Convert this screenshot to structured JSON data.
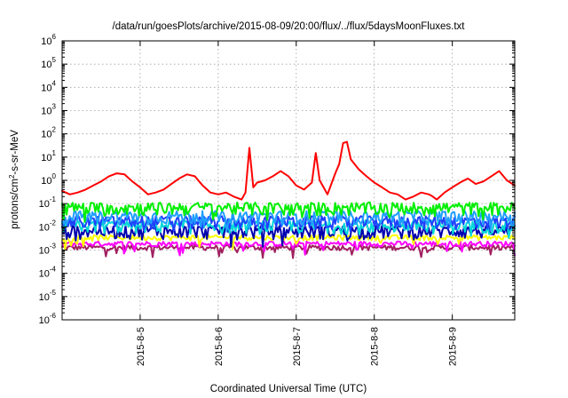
{
  "chart_data": {
    "type": "line",
    "title": "/data/run/goesPlots/archive/2015-08-09/20:00/flux/../flux/5daysMoonFluxes.txt",
    "xlabel": "Coordinated Universal Time (UTC)",
    "ylabel": "protons/cm²-s-sr-MeV",
    "yscale": "log",
    "ylim": [
      1e-06,
      1000000.0
    ],
    "xlim": [
      0,
      5.8
    ],
    "x_tick_labels": [
      "2015-8-5",
      "2015-8-6",
      "2015-8-7",
      "2015-8-8",
      "2015-8-9"
    ],
    "x_tick_positions": [
      1,
      2,
      3,
      4,
      5
    ],
    "y_tick_labels": [
      {
        "base": "10",
        "exp": "-6",
        "value": 1e-06
      },
      {
        "base": "10",
        "exp": "-5",
        "value": 1e-05
      },
      {
        "base": "10",
        "exp": "-4",
        "value": 0.0001
      },
      {
        "base": "10",
        "exp": "-3",
        "value": 0.001
      },
      {
        "base": "10",
        "exp": "-2",
        "value": 0.01
      },
      {
        "base": "10",
        "exp": "-1",
        "value": 0.1
      },
      {
        "base": "10",
        "exp": "0",
        "value": 1
      },
      {
        "base": "10",
        "exp": "1",
        "value": 10
      },
      {
        "base": "10",
        "exp": "2",
        "value": 100
      },
      {
        "base": "10",
        "exp": "3",
        "value": 1000
      },
      {
        "base": "10",
        "exp": "4",
        "value": 10000
      },
      {
        "base": "10",
        "exp": "5",
        "value": 100000
      },
      {
        "base": "10",
        "exp": "6",
        "value": 1000000
      }
    ],
    "grid": true,
    "legend": "none",
    "series": [
      {
        "color": "#ff0000",
        "x": [
          0,
          0.1,
          0.2,
          0.3,
          0.4,
          0.5,
          0.6,
          0.7,
          0.8,
          0.9,
          1.0,
          1.1,
          1.2,
          1.3,
          1.4,
          1.5,
          1.6,
          1.7,
          1.8,
          1.9,
          2.0,
          2.1,
          2.2,
          2.3,
          2.35,
          2.4,
          2.45,
          2.5,
          2.6,
          2.7,
          2.8,
          2.9,
          3.0,
          3.1,
          3.2,
          3.25,
          3.3,
          3.35,
          3.4,
          3.5,
          3.55,
          3.6,
          3.65,
          3.7,
          3.8,
          3.9,
          4.0,
          4.1,
          4.2,
          4.3,
          4.4,
          4.5,
          4.6,
          4.7,
          4.75,
          4.8,
          4.9,
          5.0,
          5.1,
          5.2,
          5.3,
          5.4,
          5.5,
          5.6,
          5.7,
          5.8
        ],
        "y": [
          0.35,
          0.25,
          0.3,
          0.4,
          0.6,
          0.9,
          1.5,
          2.0,
          1.8,
          0.9,
          0.5,
          0.25,
          0.3,
          0.4,
          0.7,
          1.2,
          1.8,
          1.5,
          0.6,
          0.3,
          0.25,
          0.3,
          0.2,
          0.15,
          0.3,
          25,
          0.5,
          0.8,
          1.0,
          1.5,
          2.5,
          1.5,
          0.6,
          0.4,
          0.8,
          15,
          1.0,
          0.5,
          0.25,
          2.0,
          5.0,
          40,
          45,
          8.0,
          3.0,
          1.5,
          0.8,
          0.5,
          0.3,
          0.25,
          0.15,
          0.2,
          0.3,
          0.25,
          0.2,
          0.15,
          0.3,
          0.5,
          0.8,
          1.2,
          0.7,
          0.9,
          1.5,
          2.5,
          1.0,
          0.6
        ]
      },
      {
        "color": "#00ee00",
        "base": 0.07
      },
      {
        "color": "#1f9fff",
        "base": 0.03
      },
      {
        "color": "#2040ff",
        "base": 0.018
      },
      {
        "color": "#00d8d8",
        "base": 0.012
      },
      {
        "color": "#0000b0",
        "base": 0.007
      },
      {
        "color": "#ffff00",
        "base": 0.0035
      },
      {
        "color": "#ff00ff",
        "base": 0.0019
      },
      {
        "color": "#a02060",
        "base": 0.0013
      }
    ]
  }
}
